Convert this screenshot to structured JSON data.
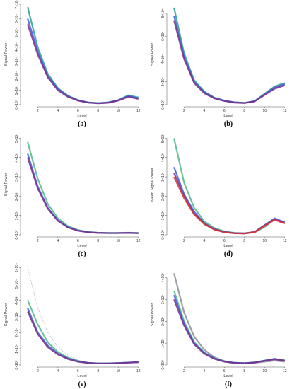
{
  "chart_data": [
    {
      "type": "line",
      "caption": "(a)",
      "xlabel": "Level",
      "ylabel": "Signal Power",
      "x": [
        1,
        2,
        3,
        4,
        5,
        6,
        7,
        8,
        9,
        10,
        11,
        12
      ],
      "xlim": [
        0.5,
        12.3
      ],
      "xticks": [
        2,
        4,
        6,
        8,
        10,
        12
      ],
      "ylim": [
        0,
        700000
      ],
      "yticks": [
        {
          "value": 0,
          "label": "0×10⁰"
        },
        {
          "value": 100000,
          "label": "1×10⁵"
        },
        {
          "value": 200000,
          "label": "2×10⁵"
        },
        {
          "value": 300000,
          "label": "3×10⁵"
        },
        {
          "value": 400000,
          "label": "4×10⁵"
        },
        {
          "value": 500000,
          "label": "5×10⁵"
        },
        {
          "value": 600000,
          "label": "6×10⁵"
        },
        {
          "value": 700000,
          "label": "7×10⁵"
        }
      ],
      "series": [
        {
          "color": "#2a9d8f",
          "values": [
            680000,
            400000,
            215000,
            115000,
            62000,
            32000,
            16000,
            11000,
            16000,
            32000,
            65000,
            50000
          ]
        },
        {
          "color": "#3b5bdb",
          "values": [
            600000,
            370000,
            200000,
            110000,
            60000,
            30000,
            15000,
            10000,
            15000,
            30000,
            60000,
            45000
          ]
        },
        {
          "color": "#7b2d8b",
          "values": [
            560000,
            350000,
            190000,
            100000,
            55000,
            28000,
            14000,
            9000,
            13000,
            28000,
            55000,
            40000
          ]
        }
      ]
    },
    {
      "type": "line",
      "caption": "(b)",
      "xlabel": "Level",
      "ylabel": "Signal Power",
      "x": [
        1,
        2,
        3,
        4,
        5,
        6,
        7,
        8,
        9,
        10,
        11,
        12
      ],
      "xlim": [
        0.5,
        12.3
      ],
      "xticks": [
        2,
        4,
        6,
        8,
        10,
        12
      ],
      "ylim": [
        0,
        880000
      ],
      "yticks": [
        {
          "value": 0,
          "label": "0×10⁰"
        },
        {
          "value": 200000,
          "label": "2×10⁵"
        },
        {
          "value": 400000,
          "label": "4×10⁵"
        },
        {
          "value": 600000,
          "label": "6×10⁵"
        },
        {
          "value": 800000,
          "label": "8×10⁵"
        }
      ],
      "series": [
        {
          "color": "#2a9d8f",
          "values": [
            850000,
            450000,
            215000,
            115000,
            62000,
            36000,
            21000,
            16000,
            32000,
            95000,
            160000,
            190000
          ]
        },
        {
          "color": "#3b5bdb",
          "values": [
            780000,
            420000,
            200000,
            110000,
            60000,
            35000,
            20000,
            15000,
            30000,
            90000,
            150000,
            180000
          ]
        },
        {
          "color": "#7b2d8b",
          "values": [
            740000,
            400000,
            190000,
            100000,
            55000,
            32000,
            18000,
            14000,
            28000,
            85000,
            140000,
            170000
          ]
        }
      ]
    },
    {
      "type": "line",
      "caption": "(c)",
      "xlabel": "Level",
      "ylabel": "Signal Power",
      "x": [
        1,
        2,
        3,
        4,
        5,
        6,
        7,
        8,
        9,
        10,
        11,
        12
      ],
      "xlim": [
        0.5,
        12.3
      ],
      "xticks": [
        2,
        4,
        6,
        8,
        10,
        12
      ],
      "ylim": [
        0,
        520000
      ],
      "hline": 20000,
      "yticks": [
        {
          "value": 0,
          "label": "0×10⁰"
        },
        {
          "value": 100000,
          "label": "1×10⁵"
        },
        {
          "value": 200000,
          "label": "2×10⁵"
        },
        {
          "value": 300000,
          "label": "3×10⁵"
        },
        {
          "value": 400000,
          "label": "4×10⁵"
        },
        {
          "value": 500000,
          "label": "5×10⁵"
        }
      ],
      "series": [
        {
          "color": "#52b788",
          "values": [
            480000,
            290000,
            160000,
            85000,
            45000,
            25000,
            15000,
            11000,
            10000,
            10000,
            11000,
            10000
          ]
        },
        {
          "color": "#3b5bdb",
          "values": [
            420000,
            250000,
            140000,
            75000,
            40000,
            22000,
            14000,
            10000,
            9000,
            9000,
            10000,
            9000
          ]
        },
        {
          "color": "#7b2d8b",
          "values": [
            400000,
            240000,
            135000,
            72000,
            38000,
            21000,
            13000,
            10000,
            9000,
            9000,
            10000,
            8000
          ]
        }
      ]
    },
    {
      "type": "line",
      "caption": "(d)",
      "xlabel": "Level",
      "ylabel": "Mean Signal Power",
      "x": [
        1,
        2,
        3,
        4,
        5,
        6,
        7,
        8,
        9,
        10,
        11,
        12
      ],
      "xlim": [
        0.5,
        12.3
      ],
      "xticks": [
        2,
        4,
        6,
        8,
        10,
        12
      ],
      "ylim": [
        0,
        520000
      ],
      "yticks": [
        {
          "value": 0,
          "label": "0×10⁰"
        },
        {
          "value": 100000,
          "label": "1×10⁵"
        },
        {
          "value": 200000,
          "label": "2×10⁵"
        },
        {
          "value": 300000,
          "label": "3×10⁵"
        },
        {
          "value": 400000,
          "label": "4×10⁵"
        },
        {
          "value": 500000,
          "label": "5×10⁵"
        }
      ],
      "series": [
        {
          "color": "#52b788",
          "values": [
            500000,
            270000,
            140000,
            70000,
            35000,
            18000,
            10000,
            8000,
            12000,
            40000,
            80000,
            60000
          ]
        },
        {
          "color": "#3b5bdb",
          "values": [
            350000,
            210000,
            120000,
            60000,
            30000,
            15000,
            9000,
            8000,
            15000,
            50000,
            85000,
            65000
          ]
        },
        {
          "color": "#7b2d8b",
          "values": [
            320000,
            200000,
            110000,
            58000,
            28000,
            14000,
            8000,
            7000,
            14000,
            48000,
            80000,
            60000
          ]
        },
        {
          "color": "#e03131",
          "values": [
            300000,
            190000,
            105000,
            55000,
            27000,
            13000,
            8000,
            7000,
            14000,
            46000,
            78000,
            58000
          ]
        }
      ]
    },
    {
      "type": "line",
      "caption": "(e)",
      "xlabel": "Level",
      "ylabel": "Signal Power",
      "x": [
        1,
        2,
        3,
        4,
        5,
        6,
        7,
        8,
        9,
        10,
        11,
        12
      ],
      "xlim": [
        0.5,
        12.3
      ],
      "xticks": [
        2,
        4,
        6,
        8,
        10,
        12
      ],
      "ylim": [
        0,
        620000
      ],
      "yticks": [
        {
          "value": 0,
          "label": "0×10⁰"
        },
        {
          "value": 100000,
          "label": "1×10⁵"
        },
        {
          "value": 200000,
          "label": "2×10⁵"
        },
        {
          "value": 300000,
          "label": "3×10⁵"
        },
        {
          "value": 400000,
          "label": "4×10⁵"
        },
        {
          "value": 500000,
          "label": "5×10⁵"
        },
        {
          "value": 600000,
          "label": "6×10⁵"
        }
      ],
      "series": [
        {
          "color": "#adb5bd",
          "dash": true,
          "values": [
            600000,
            350000,
            200000,
            110000,
            60000,
            30000,
            15000,
            10000,
            9000,
            10000,
            12000,
            14000
          ]
        },
        {
          "color": "#52b788",
          "values": [
            400000,
            250000,
            140000,
            80000,
            45000,
            25000,
            14000,
            10000,
            10000,
            12000,
            15000,
            18000
          ]
        },
        {
          "color": "#3b5bdb",
          "values": [
            350000,
            200000,
            120000,
            70000,
            40000,
            22000,
            13000,
            10000,
            10000,
            12000,
            15000,
            18000
          ]
        },
        {
          "color": "#7b2d8b",
          "values": [
            330000,
            190000,
            110000,
            65000,
            37000,
            20000,
            12000,
            9000,
            9000,
            11000,
            14000,
            17000
          ]
        }
      ]
    },
    {
      "type": "line",
      "caption": "(f)",
      "xlabel": "Level",
      "ylabel": "Signal Power",
      "x": [
        1,
        2,
        3,
        4,
        5,
        6,
        7,
        8,
        9,
        10,
        11,
        12
      ],
      "xlim": [
        0.5,
        12.3
      ],
      "xticks": [
        2,
        4,
        6,
        8,
        10,
        12
      ],
      "ylim": [
        0,
        460000
      ],
      "yticks": [
        {
          "value": 0,
          "label": "0×10⁰"
        },
        {
          "value": 100000,
          "label": "1×10⁵"
        },
        {
          "value": 200000,
          "label": "2×10⁵"
        },
        {
          "value": 300000,
          "label": "3×10⁵"
        },
        {
          "value": 400000,
          "label": "4×10⁵"
        }
      ],
      "series": [
        {
          "color": "#868e96",
          "values": [
            420000,
            240000,
            130000,
            70000,
            35000,
            18000,
            10000,
            8000,
            10000,
            15000,
            20000,
            15000
          ]
        },
        {
          "color": "#52b788",
          "values": [
            340000,
            200000,
            105000,
            57000,
            31000,
            17000,
            10000,
            8000,
            12000,
            20000,
            28000,
            21000
          ]
        },
        {
          "color": "#3b5bdb",
          "values": [
            320000,
            190000,
            100000,
            55000,
            30000,
            16000,
            10000,
            8000,
            12000,
            20000,
            28000,
            20000
          ]
        },
        {
          "color": "#7b2d8b",
          "values": [
            300000,
            180000,
            95000,
            52000,
            28000,
            15000,
            9000,
            7000,
            11000,
            19000,
            26000,
            19000
          ]
        }
      ]
    }
  ]
}
